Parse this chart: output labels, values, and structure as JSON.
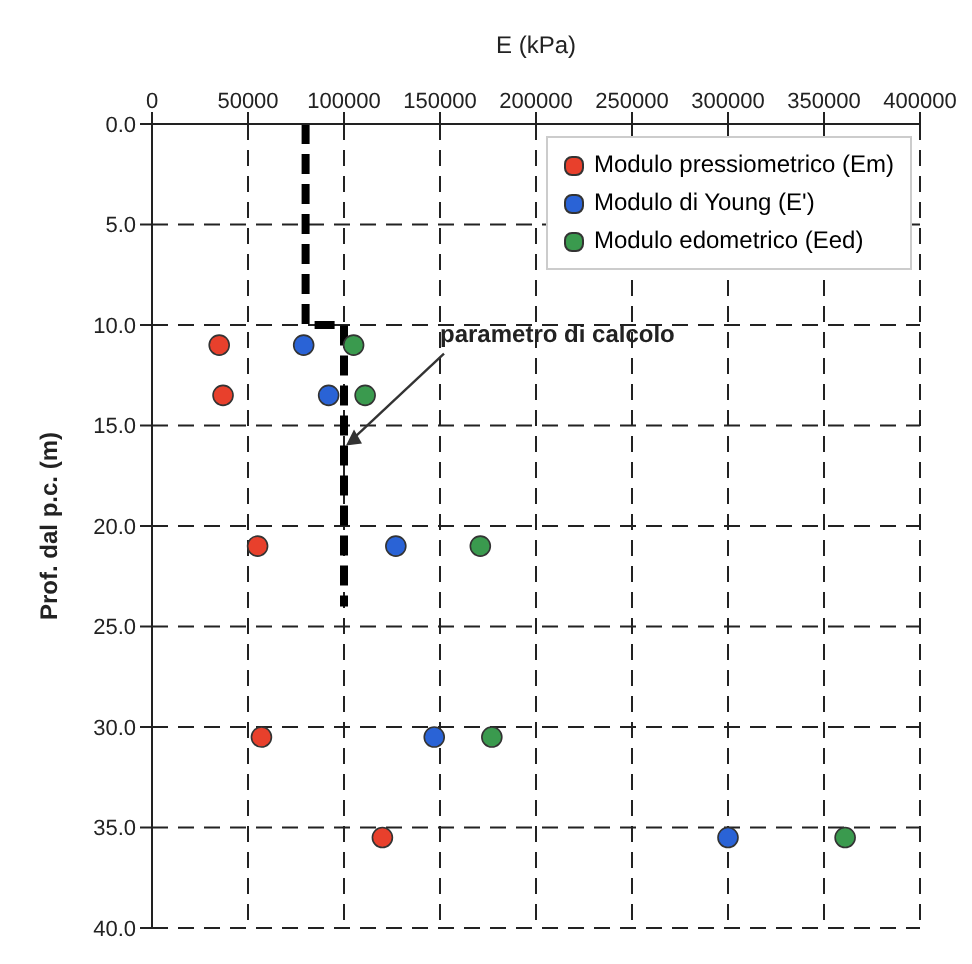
{
  "chart_data": {
    "type": "scatter",
    "xlabel": "E (kPa)",
    "ylabel": "Prof. dal p.c. (m)",
    "xlim": [
      0,
      400000
    ],
    "xticks": [
      0,
      50000,
      100000,
      150000,
      200000,
      250000,
      300000,
      350000,
      400000
    ],
    "ylim": [
      40,
      0
    ],
    "yticks": [
      {
        "value": 0,
        "label": "0.0"
      },
      {
        "value": 5,
        "label": "5.0"
      },
      {
        "value": 10,
        "label": "10.0"
      },
      {
        "value": 15,
        "label": "15.0"
      },
      {
        "value": 20,
        "label": "20.0"
      },
      {
        "value": 25,
        "label": "25.0"
      },
      {
        "value": 30,
        "label": "30.0"
      },
      {
        "value": 35,
        "label": "35.0"
      },
      {
        "value": 40,
        "label": "40.0"
      }
    ],
    "grid": true,
    "legend": "top right",
    "marker": "circle",
    "series": [
      {
        "name": "Modulo pressiometrico (Em)",
        "color": "#e8402c",
        "x": [
          35000,
          37000,
          55000,
          57000,
          120000
        ],
        "values": [
          11,
          13.5,
          21,
          30.5,
          35.5
        ]
      },
      {
        "name": "Modulo di Young (E')",
        "color": "#2a63d6",
        "x": [
          79000,
          92000,
          127000,
          147000,
          300000
        ],
        "values": [
          11,
          13.5,
          21,
          30.5,
          35.5
        ]
      },
      {
        "name": "Modulo edometrico (Eed)",
        "color": "#3a9a4e",
        "x": [
          105000,
          111000,
          171000,
          177000,
          361000
        ],
        "values": [
          11,
          13.5,
          21,
          30.5,
          35.5
        ]
      },
      {
        "type": "line",
        "color": "#000000",
        "line_style": "dashed",
        "marker": "none",
        "x": [
          80000,
          80000,
          100000,
          100000
        ],
        "values": [
          0,
          10,
          10,
          24
        ]
      }
    ],
    "annotations": [
      {
        "text": "parametro di calcolo",
        "x": 100000,
        "y": 16
      }
    ]
  }
}
